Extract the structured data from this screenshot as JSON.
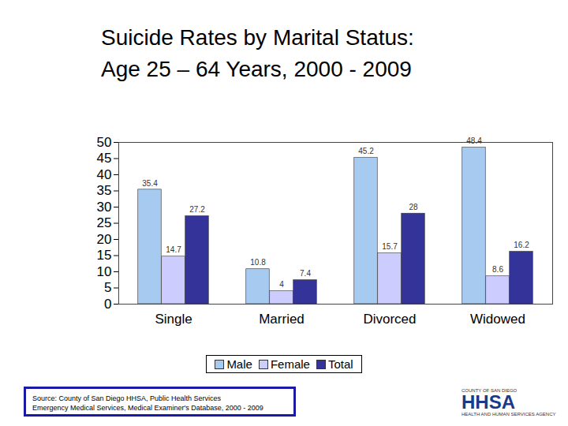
{
  "chart_data": {
    "type": "bar",
    "title": [
      "Suicide Rates by Marital Status:",
      "Age 25 – 64 Years, 2000 - 2009"
    ],
    "categories": [
      "Single",
      "Married",
      "Divorced",
      "Widowed"
    ],
    "series": [
      {
        "name": "Male",
        "color": "#a6caf0",
        "values": [
          35.4,
          10.8,
          45.2,
          48.4
        ]
      },
      {
        "name": "Female",
        "color": "#ccccff",
        "values": [
          14.7,
          4,
          15.7,
          8.6
        ]
      },
      {
        "name": "Total",
        "color": "#333399",
        "values": [
          27.2,
          7.4,
          28,
          16.2
        ]
      }
    ],
    "ylim": [
      0,
      50
    ],
    "yticks": [
      0,
      5,
      10,
      15,
      20,
      25,
      30,
      35,
      40,
      45,
      50
    ],
    "grid": false,
    "legend": "bottom",
    "data_labels": true,
    "source": [
      "Source: County of San Diego HHSA, Public Health Services",
      "Emergency Medical Services, Medical Examiner's Database, 2000 - 2009"
    ],
    "logo": [
      "COUNTY OF SAN DIEGO",
      "HHSA",
      "HEALTH AND HUMAN SERVICES AGENCY"
    ]
  }
}
